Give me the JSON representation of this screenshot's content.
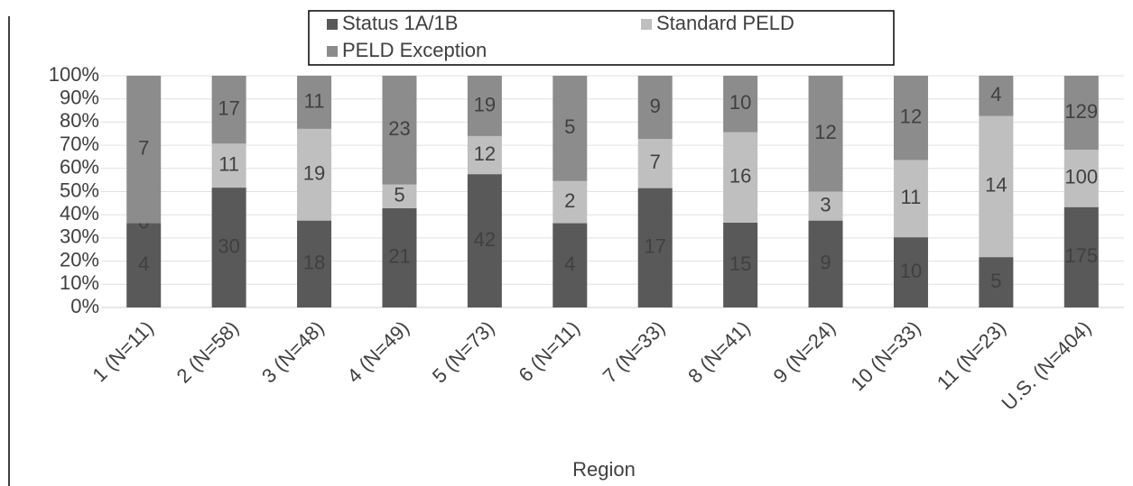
{
  "chart_data": {
    "type": "stacked_percent_bar",
    "x_label": "Region",
    "categories": [
      "1 (N=11)",
      "2 (N=58)",
      "3 (N=48)",
      "4 (N=49)",
      "5 (N=73)",
      "6 (N=11)",
      "7 (N=33)",
      "8 (N=41)",
      "9 (N=24)",
      "10 (N=33)",
      "11 (N=23)",
      "U.S. (N=404)"
    ],
    "series": [
      {
        "name": "Status 1A/1B",
        "color": "#595959",
        "values": [
          4,
          30,
          18,
          21,
          42,
          4,
          17,
          15,
          9,
          10,
          5,
          175
        ]
      },
      {
        "name": "Standard PELD",
        "color": "#bfbfbf",
        "values": [
          0,
          11,
          19,
          5,
          12,
          2,
          7,
          16,
          3,
          11,
          14,
          100
        ]
      },
      {
        "name": "PELD Exception",
        "color": "#8c8c8c",
        "values": [
          7,
          17,
          11,
          23,
          19,
          5,
          9,
          10,
          12,
          12,
          4,
          129
        ]
      }
    ],
    "ylim": [
      0,
      100
    ],
    "yticks": [
      {
        "value": 0,
        "label": "0%"
      },
      {
        "value": 10,
        "label": "10%"
      },
      {
        "value": 20,
        "label": "20%"
      },
      {
        "value": 30,
        "label": "30%"
      },
      {
        "value": 40,
        "label": "40%"
      },
      {
        "value": 50,
        "label": "50%"
      },
      {
        "value": 60,
        "label": "60%"
      },
      {
        "value": 70,
        "label": "70%"
      },
      {
        "value": 80,
        "label": "80%"
      },
      {
        "value": 90,
        "label": "90%"
      },
      {
        "value": 100,
        "label": "100%"
      }
    ],
    "grid": true
  }
}
